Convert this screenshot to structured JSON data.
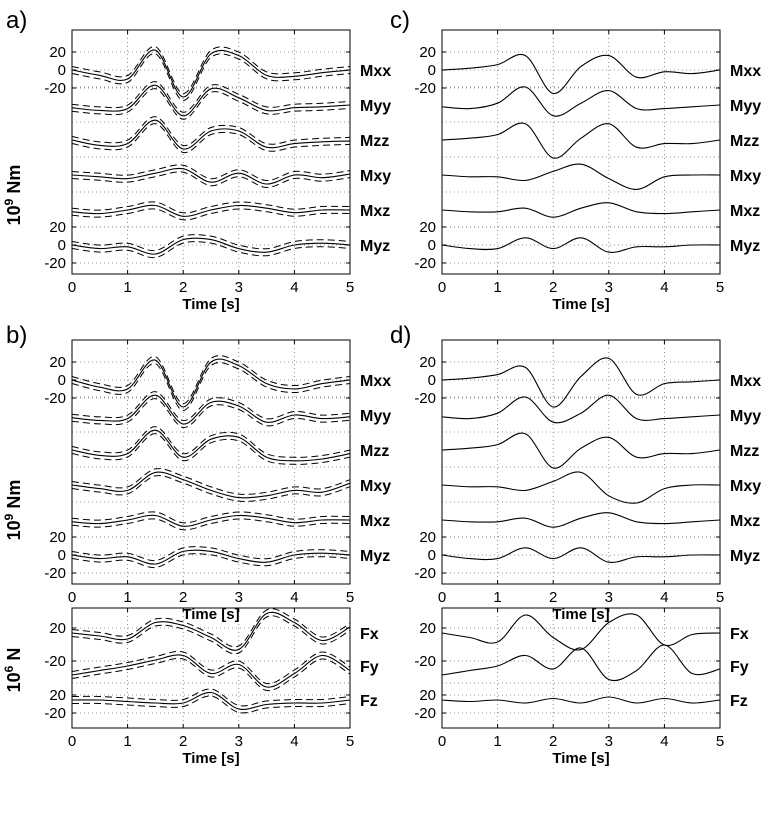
{
  "chart_data": {
    "type": "line",
    "x_range": [
      0,
      5
    ],
    "x_ticks": [
      0,
      1,
      2,
      3,
      4,
      5
    ],
    "xlabel": "Time [s]",
    "grid": true,
    "panel_labels": [
      "a)",
      "b)",
      "c)",
      "d)"
    ],
    "moment_units": "10^9 Nm",
    "force_units": "10^6 N",
    "moment_channels": [
      "Mxx",
      "Myy",
      "Mzz",
      "Mxy",
      "Mxz",
      "Myz"
    ],
    "force_channels": [
      "Fx",
      "Fy",
      "Fz"
    ],
    "moment_tick_labels": [
      "20",
      "0",
      "-20",
      "20",
      "0",
      "-20"
    ],
    "force_tick_labels": [
      "20",
      "-20",
      "20",
      "-20"
    ],
    "x": [
      0,
      0.5,
      1,
      1.5,
      2,
      2.5,
      3,
      3.5,
      4,
      4.5,
      5
    ],
    "panels": [
      {
        "label": "a)",
        "units": "10^9 Nm",
        "uncertainty_bounds": true,
        "series": [
          {
            "name": "Mxx",
            "values": [
              0,
              -6,
              -10,
              22,
              -30,
              18,
              16,
              -6,
              -7,
              -3,
              0
            ]
          },
          {
            "name": "Myy",
            "values": [
              -3,
              -6,
              -4,
              22,
              -12,
              18,
              8,
              -6,
              -3,
              -2,
              0
            ]
          },
          {
            "name": "Mzz",
            "values": [
              0,
              -6,
              -4,
              22,
              -10,
              10,
              10,
              -8,
              -4,
              -2,
              -1
            ]
          },
          {
            "name": "Mxy",
            "values": [
              0,
              -2,
              -4,
              2,
              7,
              -8,
              2,
              -10,
              0,
              -3,
              1
            ]
          },
          {
            "name": "Mxz",
            "values": [
              -2,
              -4,
              0,
              5,
              -7,
              0,
              5,
              2,
              -3,
              0,
              0
            ]
          },
          {
            "name": "Myz",
            "values": [
              0,
              -4,
              -2,
              -10,
              6,
              6,
              -4,
              -8,
              0,
              2,
              0
            ]
          }
        ]
      },
      {
        "label": "b)",
        "units": "10^9 Nm",
        "uncertainty_bounds": true,
        "series": [
          {
            "name": "Mxx",
            "values": [
              0,
              -8,
              -10,
              22,
              -30,
              20,
              16,
              -4,
              -10,
              -4,
              0
            ]
          },
          {
            "name": "Myy",
            "values": [
              -3,
              -6,
              -4,
              22,
              -10,
              14,
              10,
              -8,
              0,
              -4,
              -2
            ]
          },
          {
            "name": "Mzz",
            "values": [
              0,
              -6,
              -4,
              22,
              -8,
              12,
              14,
              -8,
              -12,
              -10,
              -4
            ]
          },
          {
            "name": "Mxy",
            "values": [
              0,
              -4,
              -6,
              14,
              6,
              -6,
              -14,
              -12,
              -6,
              -8,
              2
            ]
          },
          {
            "name": "Mxz",
            "values": [
              -2,
              -4,
              0,
              5,
              -7,
              0,
              5,
              2,
              -3,
              0,
              0
            ]
          },
          {
            "name": "Myz",
            "values": [
              0,
              -4,
              -2,
              -10,
              4,
              4,
              -4,
              -8,
              0,
              2,
              0
            ]
          }
        ]
      },
      {
        "label": "c)",
        "units": "10^9 Nm",
        "uncertainty_bounds": false,
        "series": [
          {
            "name": "Mxx",
            "values": [
              0,
              2,
              6,
              16,
              -26,
              4,
              16,
              -8,
              -2,
              -4,
              0
            ]
          },
          {
            "name": "Myy",
            "values": [
              -2,
              -4,
              2,
              20,
              -12,
              2,
              16,
              -4,
              -4,
              -2,
              0
            ]
          },
          {
            "name": "Mzz",
            "values": [
              0,
              2,
              6,
              18,
              -20,
              2,
              18,
              -8,
              -4,
              -4,
              0
            ]
          },
          {
            "name": "Mxy",
            "values": [
              0,
              -2,
              -2,
              -6,
              4,
              12,
              -4,
              -16,
              -2,
              0,
              0
            ]
          },
          {
            "name": "Mxz",
            "values": [
              0,
              -2,
              -2,
              2,
              -8,
              2,
              8,
              -2,
              -4,
              -2,
              0
            ]
          },
          {
            "name": "Myz",
            "values": [
              0,
              -4,
              -4,
              8,
              -4,
              8,
              -8,
              -2,
              -2,
              0,
              0
            ]
          }
        ]
      },
      {
        "label": "d)",
        "units": "10^9 Nm",
        "uncertainty_bounds": false,
        "series": [
          {
            "name": "Mxx",
            "values": [
              0,
              2,
              6,
              14,
              -30,
              4,
              24,
              -16,
              -4,
              -2,
              0
            ]
          },
          {
            "name": "Myy",
            "values": [
              -2,
              -4,
              2,
              20,
              -8,
              2,
              22,
              -4,
              -4,
              -2,
              0
            ]
          },
          {
            "name": "Mzz",
            "values": [
              0,
              2,
              6,
              18,
              -20,
              2,
              14,
              -8,
              -4,
              -4,
              0
            ]
          },
          {
            "name": "Mxy",
            "values": [
              0,
              -2,
              -2,
              -6,
              4,
              14,
              -12,
              -20,
              -4,
              0,
              0
            ]
          },
          {
            "name": "Mxz",
            "values": [
              0,
              -2,
              -2,
              2,
              -8,
              2,
              8,
              -2,
              -4,
              -2,
              0
            ]
          },
          {
            "name": "Myz",
            "values": [
              0,
              -4,
              -4,
              8,
              -4,
              8,
              -8,
              -2,
              -2,
              0,
              0
            ]
          }
        ]
      },
      {
        "label": "",
        "units": "10^6 N",
        "uncertainty_bounds": true,
        "series": [
          {
            "name": "Fx",
            "values": [
              0,
              -4,
              -8,
              14,
              10,
              -6,
              -22,
              26,
              14,
              -10,
              8
            ]
          },
          {
            "name": "Fy",
            "values": [
              -12,
              -6,
              0,
              8,
              14,
              -10,
              2,
              -28,
              -10,
              14,
              -6
            ]
          },
          {
            "name": "Fz",
            "values": [
              0,
              0,
              -2,
              -4,
              -4,
              10,
              -12,
              -6,
              -4,
              -4,
              0
            ]
          }
        ]
      },
      {
        "label": "",
        "units": "10^6 N",
        "uncertainty_bounds": false,
        "series": [
          {
            "name": "Fx",
            "values": [
              0,
              -6,
              -12,
              24,
              -6,
              -22,
              14,
              24,
              -16,
              -2,
              0
            ]
          },
          {
            "name": "Fy",
            "values": [
              -12,
              -6,
              0,
              14,
              -4,
              24,
              -18,
              -6,
              28,
              -10,
              -4
            ]
          },
          {
            "name": "Fz",
            "values": [
              0,
              -2,
              0,
              -4,
              2,
              -4,
              4,
              -4,
              2,
              -4,
              0
            ]
          }
        ]
      }
    ]
  }
}
